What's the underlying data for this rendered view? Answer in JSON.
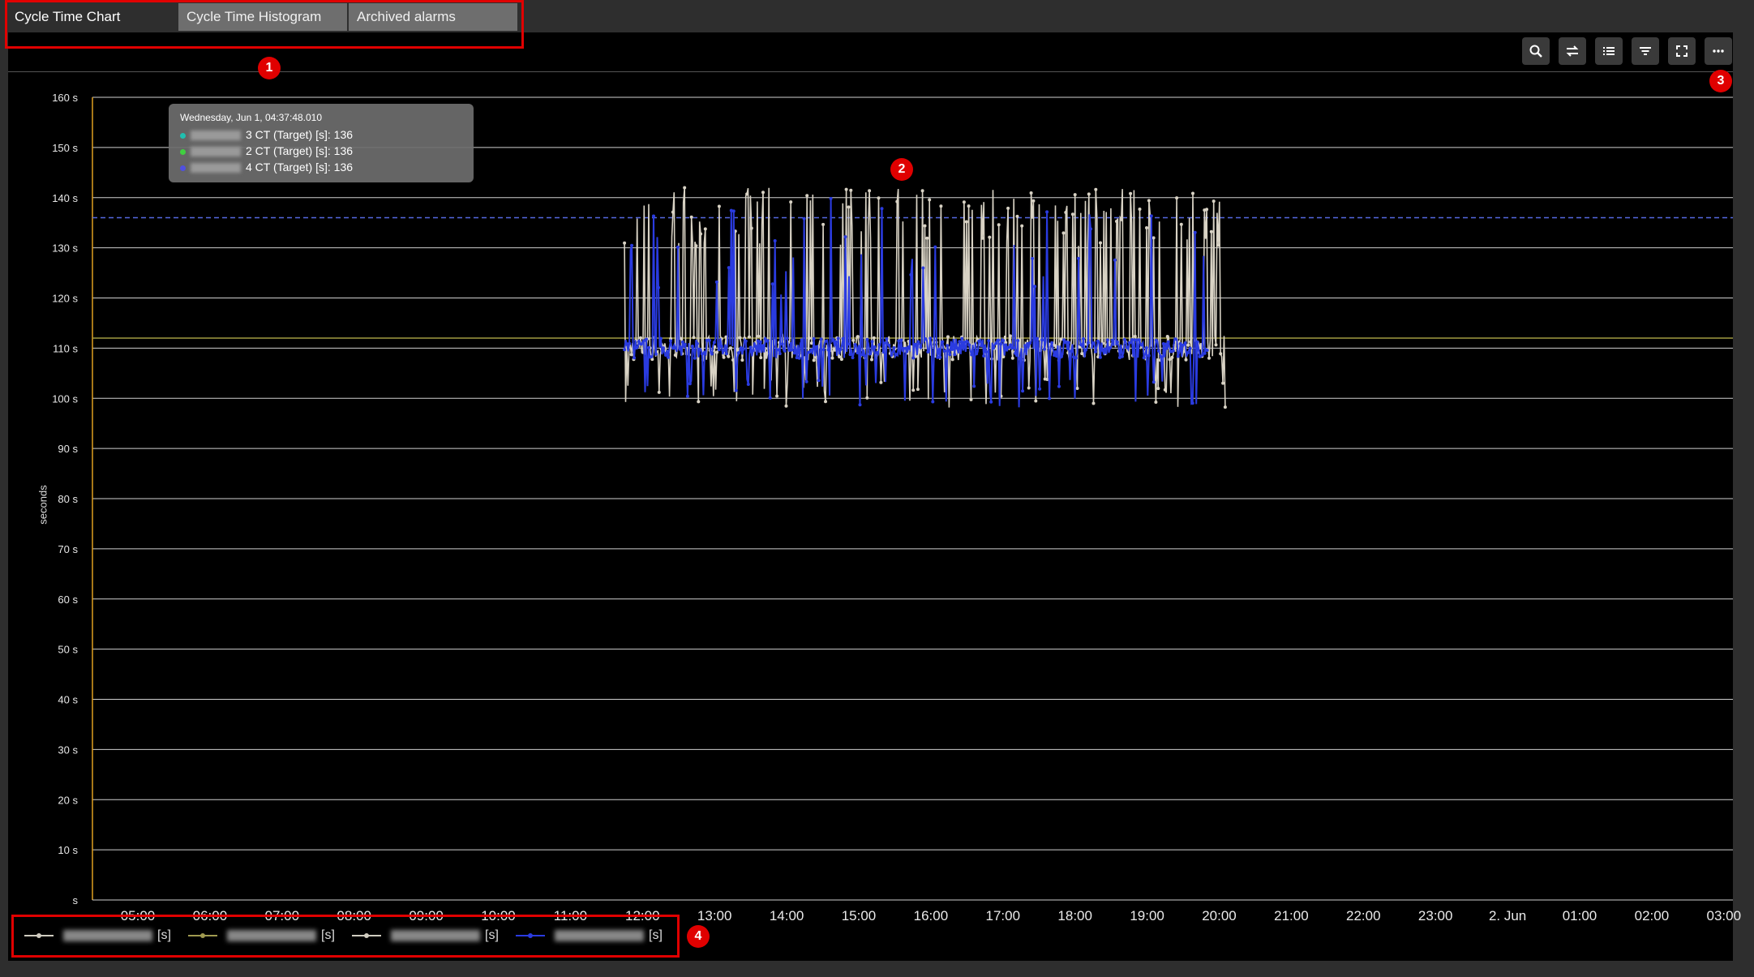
{
  "tabs": [
    {
      "label": "Cycle Time Chart",
      "active": true
    },
    {
      "label": "Cycle Time Histogram",
      "active": false
    },
    {
      "label": "Archived alarms",
      "active": false
    }
  ],
  "toolbar": {
    "buttons": [
      "zoom-icon",
      "swap-icon",
      "list-icon",
      "filter-icon",
      "fullscreen-icon",
      "more-icon"
    ]
  },
  "annotations": [
    "1",
    "2",
    "3",
    "4"
  ],
  "tooltip": {
    "title": "Wednesday, Jun 1, 04:37:48.010",
    "rows": [
      {
        "text": "3 CT (Target) [s]: 136",
        "color": "#20c0b0"
      },
      {
        "text": "2 CT (Target) [s]: 136",
        "color": "#40d040"
      },
      {
        "text": "4 CT (Target) [s]: 136",
        "color": "#5050e0"
      }
    ]
  },
  "legend": [
    {
      "unit": "[s]",
      "color": "#d0ccc0"
    },
    {
      "unit": "[s]",
      "color": "#a09a50"
    },
    {
      "unit": "[s]",
      "color": "#d0ccc0"
    },
    {
      "unit": "[s]",
      "color": "#2a3be0"
    }
  ],
  "chart_data": {
    "type": "line",
    "ylabel": "seconds",
    "ylim": [
      0,
      160
    ],
    "yticks": [
      "s",
      "10 s",
      "20 s",
      "30 s",
      "40 s",
      "50 s",
      "60 s",
      "70 s",
      "80 s",
      "90 s",
      "100 s",
      "110 s",
      "120 s",
      "130 s",
      "140 s",
      "150 s",
      "160 s"
    ],
    "xticks": [
      "05:00",
      "06:00",
      "07:00",
      "08:00",
      "09:00",
      "10:00",
      "11:00",
      "12:00",
      "13:00",
      "14:00",
      "15:00",
      "16:00",
      "17:00",
      "18:00",
      "19:00",
      "20:00",
      "21:00",
      "22:00",
      "23:00",
      "2. Jun",
      "01:00",
      "02:00",
      "03:00"
    ],
    "target_lines": [
      {
        "value": 136,
        "color": "#5568e0",
        "style": "dashed"
      },
      {
        "value": 112,
        "color": "#a09a40",
        "style": "solid"
      }
    ],
    "series": [
      {
        "color": "#d8d2c4",
        "x_range": [
          "11:45",
          "20:05"
        ],
        "baseline": 110,
        "min": 98,
        "max": 142
      },
      {
        "color": "#2a3be0",
        "x_range": [
          "11:45",
          "19:50"
        ],
        "baseline": 110,
        "min": 98,
        "max": 140
      }
    ]
  }
}
